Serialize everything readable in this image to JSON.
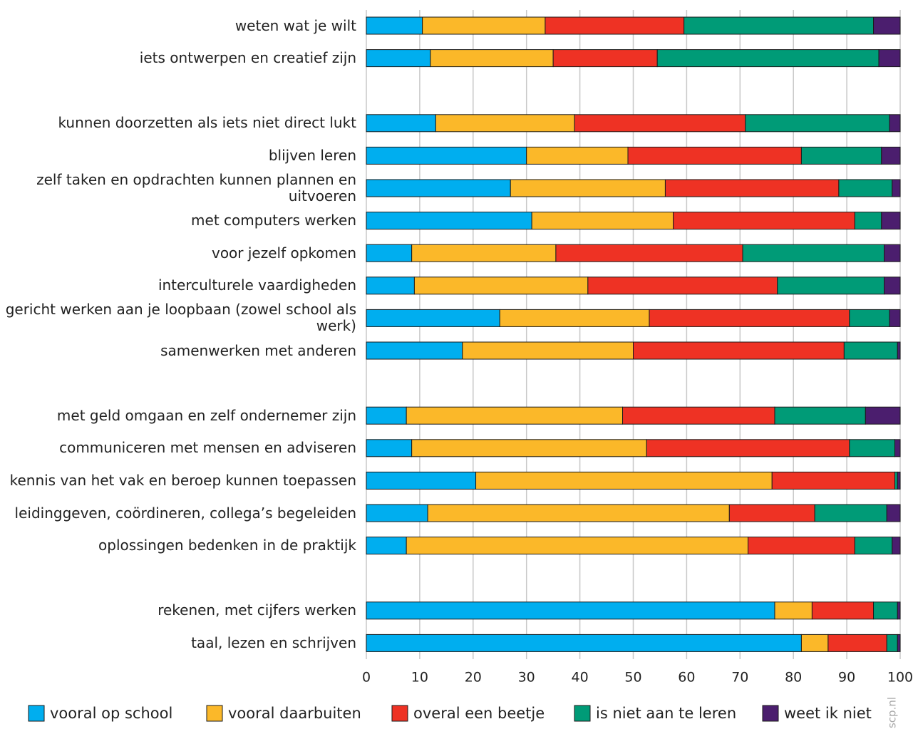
{
  "chart_data": {
    "type": "stacked_barh",
    "categories": [
      "weten wat je wilt",
      "iets ontwerpen en creatief zijn",
      null,
      "kunnen doorzetten als iets niet direct lukt",
      "blijven leren",
      "zelf taken en opdrachten kunnen plannen en uitvoeren",
      "met computers werken",
      "voor jezelf opkomen",
      "interculturele vaardigheden",
      "gericht werken aan je loopbaan (zowel school als werk)",
      "samenwerken met anderen",
      null,
      "met geld omgaan en zelf ondernemer zijn",
      "communiceren met mensen en adviseren",
      "kennis van het vak en beroep kunnen toepassen",
      "leidinggeven, coördineren, collega’s begeleiden",
      "oplossingen bedenken in de praktijk",
      null,
      "rekenen, met cijfers werken",
      "taal, lezen en schrijven"
    ],
    "series": [
      {
        "name": "vooral op school",
        "color": "#00aeef",
        "values": [
          10.5,
          12,
          null,
          13,
          30,
          27,
          31,
          8.5,
          9,
          25,
          18,
          null,
          7.5,
          8.5,
          20.5,
          11.5,
          7.5,
          null,
          76.5,
          81.5
        ]
      },
      {
        "name": "vooral daarbuiten",
        "color": "#fbb829",
        "values": [
          23,
          23,
          null,
          26,
          19,
          29,
          26.5,
          27,
          32.5,
          28,
          32,
          null,
          40.5,
          44,
          55.5,
          56.5,
          64,
          null,
          7,
          5
        ]
      },
      {
        "name": "overal een beetje",
        "color": "#ee3224",
        "values": [
          26,
          19.5,
          null,
          32,
          32.5,
          32.5,
          34,
          35,
          35.5,
          37.5,
          39.5,
          null,
          28.5,
          38,
          23,
          16,
          20,
          null,
          11.5,
          11
        ]
      },
      {
        "name": "is niet aan te leren",
        "color": "#009b77",
        "values": [
          35.5,
          41.5,
          null,
          27,
          15,
          10,
          5,
          26.5,
          20,
          7.5,
          10,
          null,
          17,
          8.5,
          0.5,
          13.5,
          7,
          null,
          4.5,
          2
        ]
      },
      {
        "name": "weet ik niet",
        "color": "#4b1e6e",
        "values": [
          5,
          4,
          null,
          2,
          3.5,
          1.5,
          3.5,
          3,
          3,
          2,
          0.5,
          null,
          6.5,
          1,
          0.5,
          2.5,
          1.5,
          null,
          0.5,
          0.5
        ]
      }
    ],
    "xlim": [
      0,
      100
    ],
    "xticks": [
      0,
      10,
      20,
      30,
      40,
      50,
      60,
      70,
      80,
      90,
      100
    ],
    "grid": true,
    "source": "scp.nl"
  }
}
